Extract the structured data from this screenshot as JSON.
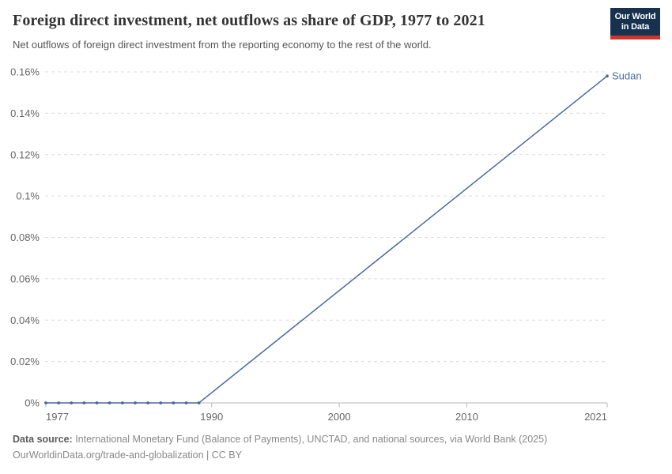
{
  "header": {
    "title": "Foreign direct investment, net outflows as share of GDP, 1977 to 2021",
    "subtitle": "Net outflows of foreign direct investment from the reporting economy to the rest of the world.",
    "logo": {
      "line1": "Our World",
      "line2": "in Data",
      "bg_color": "#16324f",
      "accent_color": "#d0342c"
    }
  },
  "chart_data": {
    "type": "line",
    "title": "Foreign direct investment, net outflows as share of GDP, 1977 to 2021",
    "xlabel": "",
    "ylabel": "",
    "xlim": [
      1977,
      2021
    ],
    "ylim": [
      0,
      0.16
    ],
    "grid": "horizontal-dashed",
    "legend_position": "end-of-line-label",
    "y_ticks": [
      {
        "value": 0.16,
        "label": "0.16%"
      },
      {
        "value": 0.14,
        "label": "0.14%"
      },
      {
        "value": 0.12,
        "label": "0.12%"
      },
      {
        "value": 0.1,
        "label": "0.1%"
      },
      {
        "value": 0.08,
        "label": "0.08%"
      },
      {
        "value": 0.06,
        "label": "0.06%"
      },
      {
        "value": 0.04,
        "label": "0.04%"
      },
      {
        "value": 0.02,
        "label": "0.02%"
      },
      {
        "value": 0,
        "label": "0%"
      }
    ],
    "x_ticks": [
      {
        "year": 1977,
        "label": "1977",
        "anchor": "start"
      },
      {
        "year": 1990,
        "label": "1990",
        "anchor": "middle"
      },
      {
        "year": 2000,
        "label": "2000",
        "anchor": "middle"
      },
      {
        "year": 2010,
        "label": "2010",
        "anchor": "middle"
      },
      {
        "year": 2021,
        "label": "2021",
        "anchor": "end"
      }
    ],
    "series": [
      {
        "name": "Sudan",
        "color": "#4a69a1",
        "points": [
          [
            1977,
            0
          ],
          [
            1978,
            0
          ],
          [
            1979,
            0
          ],
          [
            1980,
            0
          ],
          [
            1981,
            0
          ],
          [
            1982,
            0
          ],
          [
            1983,
            0
          ],
          [
            1984,
            0
          ],
          [
            1985,
            0
          ],
          [
            1986,
            0
          ],
          [
            1987,
            0
          ],
          [
            1988,
            0
          ],
          [
            1989,
            0
          ],
          [
            2021,
            0.158
          ]
        ],
        "marker_years": [
          1977,
          1978,
          1979,
          1980,
          1981,
          1982,
          1983,
          1984,
          1985,
          1986,
          1987,
          1988,
          1989,
          2021
        ]
      }
    ],
    "colors": {
      "gridline": "#dcdcdc",
      "axis": "#b9b9b9",
      "tick_label": "#666666"
    }
  },
  "footer": {
    "source_label": "Data source:",
    "source_text": " International Monetary Fund (Balance of Payments), UNCTAD, and national sources, via World Bank (2025)",
    "url": "OurWorldinData.org/trade-and-globalization",
    "license_suffix": " | CC BY"
  }
}
